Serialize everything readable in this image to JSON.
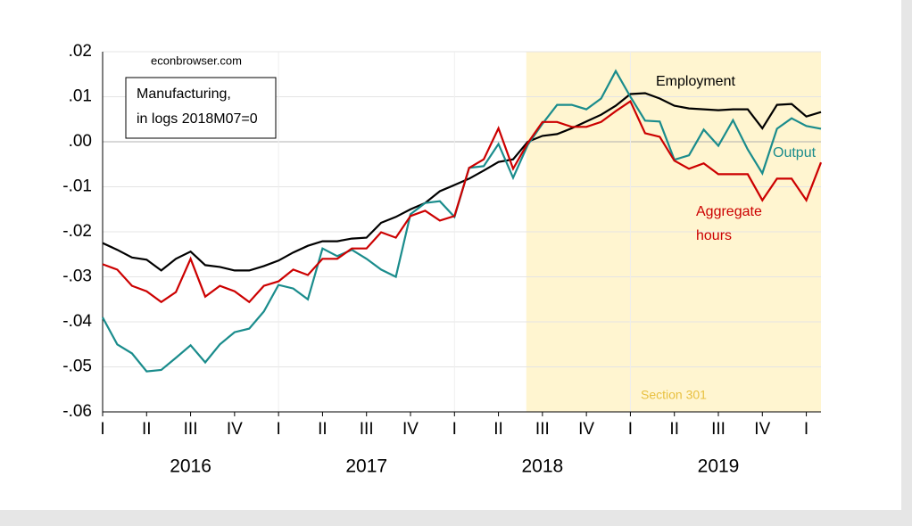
{
  "chart_data": {
    "type": "line",
    "annotations": {
      "source": "econbrowser.com",
      "box": [
        "Manufacturing,",
        "in logs 2018M07=0"
      ]
    },
    "categories": [
      "I",
      null,
      null,
      "II",
      null,
      null,
      "III",
      null,
      null,
      "IV",
      null,
      null,
      "I",
      null,
      null,
      "II",
      null,
      null,
      "III",
      null,
      null,
      "IV",
      null,
      null,
      "I",
      null,
      null,
      "II",
      null,
      null,
      "III",
      null,
      null,
      "IV",
      null,
      null,
      "I",
      null,
      null,
      "II",
      null,
      null,
      "III",
      null,
      null,
      "IV",
      null,
      null,
      "I",
      null
    ],
    "years": [
      "2016",
      "2017",
      "2018",
      "2019"
    ],
    "shade": {
      "label": "Section 301",
      "color": "#fff5d0",
      "from": 29
    },
    "ylim": [
      -0.06,
      0.02
    ],
    "yticks": [
      {
        "value": -0.06,
        "label": "-.06"
      },
      {
        "value": -0.05,
        "label": "-.05"
      },
      {
        "value": -0.04,
        "label": "-.04"
      },
      {
        "value": -0.03,
        "label": "-.03"
      },
      {
        "value": -0.02,
        "label": "-.02"
      },
      {
        "value": -0.01,
        "label": "-.01"
      },
      {
        "value": 0,
        "label": ".00"
      },
      {
        "value": 0.01,
        "label": ".01"
      },
      {
        "value": 0.02,
        "label": ".02"
      }
    ],
    "grid": true,
    "series": [
      {
        "name": "Employment",
        "color": "#000000",
        "values": [
          -0.0225,
          -0.024,
          -0.0257,
          -0.0262,
          -0.0286,
          -0.026,
          -0.0244,
          -0.0274,
          -0.0278,
          -0.0286,
          -0.0286,
          -0.0276,
          -0.0264,
          -0.0246,
          -0.0231,
          -0.0221,
          -0.0221,
          -0.0215,
          -0.0213,
          -0.018,
          -0.0167,
          -0.015,
          -0.0136,
          -0.011,
          -0.0096,
          -0.0082,
          -0.0064,
          -0.0045,
          -0.0039,
          0,
          0.0013,
          0.0017,
          0.003,
          0.0045,
          0.006,
          0.008,
          0.0106,
          0.0108,
          0.0096,
          0.008,
          0.0074,
          0.0072,
          0.007,
          0.0072,
          0.0072,
          0.003,
          0.0082,
          0.0084,
          0.0056,
          0.0066
        ]
      },
      {
        "name": "Output",
        "color": "#1a8c8c",
        "values": [
          -0.039,
          -0.045,
          -0.047,
          -0.051,
          -0.0507,
          -0.048,
          -0.0452,
          -0.049,
          -0.045,
          -0.0423,
          -0.0415,
          -0.0377,
          -0.0318,
          -0.0326,
          -0.035,
          -0.0237,
          -0.0254,
          -0.024,
          -0.026,
          -0.0284,
          -0.03,
          -0.0161,
          -0.0136,
          -0.0132,
          -0.0167,
          -0.0058,
          -0.0054,
          -0.0005,
          -0.008,
          -0.0007,
          0.004,
          0.0082,
          0.0082,
          0.0072,
          0.0096,
          0.0157,
          0.01,
          0.0047,
          0.0045,
          -0.004,
          -0.003,
          0.0027,
          -0.0009,
          0.0048,
          -0.0017,
          -0.007,
          0.0029,
          0.0052,
          0.0035,
          0.0029
        ]
      },
      {
        "name": "Aggregate hours",
        "color": "#cc0000",
        "values": [
          -0.0272,
          -0.0284,
          -0.032,
          -0.0332,
          -0.0356,
          -0.0334,
          -0.026,
          -0.0344,
          -0.032,
          -0.0332,
          -0.0356,
          -0.032,
          -0.031,
          -0.0284,
          -0.0296,
          -0.026,
          -0.026,
          -0.0237,
          -0.0237,
          -0.0201,
          -0.0213,
          -0.0165,
          -0.0153,
          -0.0175,
          -0.0165,
          -0.0058,
          -0.0039,
          0.003,
          -0.006,
          -0.0003,
          0.0044,
          0.0044,
          0.0033,
          0.0033,
          0.0044,
          0.0068,
          0.009,
          0.0019,
          0.0011,
          -0.0042,
          -0.006,
          -0.0048,
          -0.0072,
          -0.0072,
          -0.0072,
          -0.013,
          -0.0082,
          -0.0082,
          -0.013,
          -0.0046
        ]
      }
    ]
  }
}
